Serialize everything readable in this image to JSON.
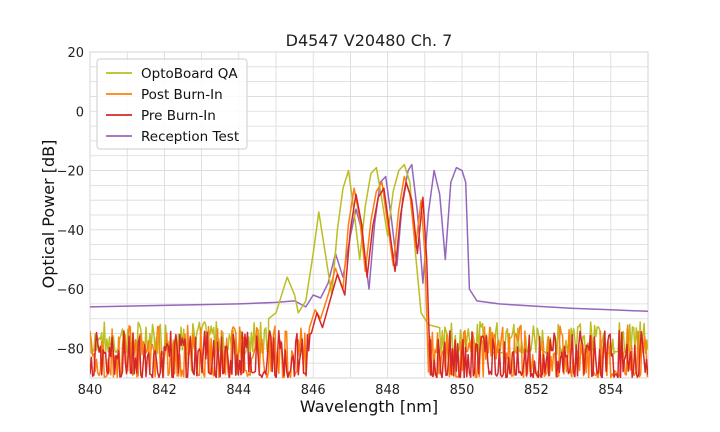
{
  "chart_data": {
    "type": "line",
    "title": "D4547 V20480 Ch. 7",
    "xlabel": "Wavelength [nm]",
    "ylabel": "Optical Power [dB]",
    "xlim": [
      840,
      855
    ],
    "ylim": [
      -90,
      20
    ],
    "xticks": [
      840,
      842,
      844,
      846,
      848,
      850,
      852,
      854
    ],
    "yticks": [
      20,
      0,
      -20,
      -40,
      -60,
      -80
    ],
    "grid": true,
    "legend_position": "upper-left",
    "series": [
      {
        "name": "OptoBoard QA",
        "color": "#bcbd22",
        "baseline": {
          "from": 840,
          "to": 844.8,
          "level": [
            -82,
            -71
          ]
        },
        "points": [
          [
            844.8,
            -70
          ],
          [
            845.0,
            -68
          ],
          [
            845.3,
            -56
          ],
          [
            845.5,
            -62
          ],
          [
            845.6,
            -68
          ],
          [
            845.8,
            -64
          ],
          [
            846.0,
            -48
          ],
          [
            846.15,
            -34
          ],
          [
            846.3,
            -46
          ],
          [
            846.5,
            -62
          ],
          [
            846.65,
            -40
          ],
          [
            846.8,
            -26
          ],
          [
            846.95,
            -20
          ],
          [
            847.1,
            -34
          ],
          [
            847.25,
            -50
          ],
          [
            847.4,
            -32
          ],
          [
            847.55,
            -21
          ],
          [
            847.7,
            -19
          ],
          [
            847.85,
            -30
          ],
          [
            848.0,
            -42
          ],
          [
            848.15,
            -27
          ],
          [
            848.3,
            -20
          ],
          [
            848.45,
            -18
          ],
          [
            848.6,
            -24
          ],
          [
            848.75,
            -48
          ],
          [
            848.9,
            -68
          ],
          [
            849.1,
            -72
          ],
          [
            849.4,
            -73
          ]
        ],
        "tail": {
          "from": 849.4,
          "to": 855,
          "level": [
            -82,
            -71
          ]
        }
      },
      {
        "name": "Post Burn-In",
        "color": "#ff7f0e",
        "baseline": {
          "from": 840,
          "to": 845.9,
          "level": [
            -90,
            -72
          ]
        },
        "points": [
          [
            845.9,
            -73
          ],
          [
            846.05,
            -67
          ],
          [
            846.2,
            -70
          ],
          [
            846.4,
            -62
          ],
          [
            846.6,
            -53
          ],
          [
            846.8,
            -60
          ],
          [
            846.95,
            -38
          ],
          [
            847.1,
            -26
          ],
          [
            847.25,
            -36
          ],
          [
            847.4,
            -54
          ],
          [
            847.55,
            -37
          ],
          [
            847.7,
            -27
          ],
          [
            847.85,
            -24
          ],
          [
            848.0,
            -38
          ],
          [
            848.15,
            -52
          ],
          [
            848.3,
            -33
          ],
          [
            848.45,
            -22
          ],
          [
            848.6,
            -28
          ],
          [
            848.75,
            -46
          ],
          [
            848.9,
            -30
          ],
          [
            849.0,
            -48
          ],
          [
            849.1,
            -88
          ]
        ],
        "tail": {
          "from": 849.1,
          "to": 855,
          "level": [
            -90,
            -72
          ]
        }
      },
      {
        "name": "Pre Burn-In",
        "color": "#d62728",
        "baseline": {
          "from": 840,
          "to": 845.95,
          "level": [
            -90,
            -74
          ]
        },
        "points": [
          [
            845.95,
            -75
          ],
          [
            846.1,
            -68
          ],
          [
            846.25,
            -73
          ],
          [
            846.45,
            -64
          ],
          [
            846.65,
            -55
          ],
          [
            846.85,
            -62
          ],
          [
            847.0,
            -40
          ],
          [
            847.15,
            -28
          ],
          [
            847.3,
            -38
          ],
          [
            847.45,
            -56
          ],
          [
            847.6,
            -39
          ],
          [
            847.75,
            -29
          ],
          [
            847.9,
            -26
          ],
          [
            848.05,
            -40
          ],
          [
            848.2,
            -54
          ],
          [
            848.35,
            -35
          ],
          [
            848.5,
            -24
          ],
          [
            848.65,
            -30
          ],
          [
            848.8,
            -48
          ],
          [
            848.95,
            -29
          ],
          [
            849.05,
            -50
          ],
          [
            849.15,
            -89
          ]
        ],
        "tail": {
          "from": 849.15,
          "to": 855,
          "level": [
            -90,
            -74
          ]
        }
      },
      {
        "name": "Reception Test",
        "color": "#9467bd",
        "points": [
          [
            840,
            -66
          ],
          [
            842,
            -65.5
          ],
          [
            844,
            -65
          ],
          [
            845,
            -64.5
          ],
          [
            845.5,
            -64
          ],
          [
            845.8,
            -66
          ],
          [
            846.0,
            -62
          ],
          [
            846.2,
            -63
          ],
          [
            846.4,
            -58
          ],
          [
            846.6,
            -48
          ],
          [
            846.8,
            -56
          ],
          [
            847.0,
            -42
          ],
          [
            847.15,
            -33
          ],
          [
            847.3,
            -40
          ],
          [
            847.5,
            -60
          ],
          [
            847.65,
            -38
          ],
          [
            847.8,
            -24
          ],
          [
            847.95,
            -22
          ],
          [
            848.1,
            -36
          ],
          [
            848.25,
            -52
          ],
          [
            848.4,
            -30
          ],
          [
            848.55,
            -20
          ],
          [
            848.65,
            -18
          ],
          [
            848.8,
            -34
          ],
          [
            848.95,
            -58
          ],
          [
            849.1,
            -34
          ],
          [
            849.25,
            -20
          ],
          [
            849.4,
            -28
          ],
          [
            849.55,
            -50
          ],
          [
            849.7,
            -24
          ],
          [
            849.85,
            -19
          ],
          [
            850.0,
            -20
          ],
          [
            850.1,
            -24
          ],
          [
            850.2,
            -60
          ],
          [
            850.4,
            -64
          ],
          [
            851,
            -65
          ],
          [
            852,
            -65.8
          ],
          [
            853,
            -66.5
          ],
          [
            854,
            -67
          ],
          [
            855,
            -67.5
          ]
        ]
      }
    ]
  }
}
